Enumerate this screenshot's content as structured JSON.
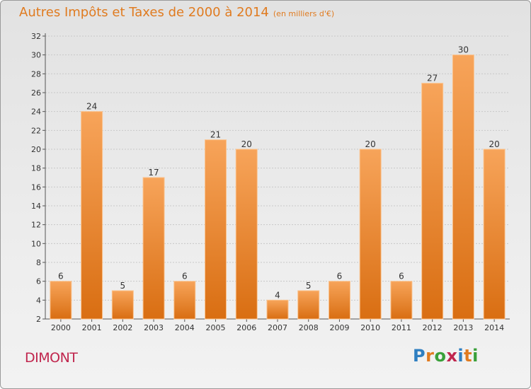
{
  "chart_data": {
    "type": "bar",
    "title": "Autres Impôts et Taxes de 2000 à 2014",
    "subtitle": "(en milliers d'€)",
    "categories": [
      "2000",
      "2001",
      "2002",
      "2003",
      "2004",
      "2005",
      "2006",
      "2007",
      "2008",
      "2009",
      "2010",
      "2011",
      "2012",
      "2013",
      "2014"
    ],
    "values": [
      6,
      24,
      5,
      17,
      6,
      21,
      20,
      4,
      5,
      6,
      20,
      6,
      27,
      30,
      20
    ],
    "ylim": [
      2,
      32
    ],
    "yticks": [
      2,
      4,
      6,
      8,
      10,
      12,
      14,
      16,
      18,
      20,
      22,
      24,
      26,
      28,
      30,
      32
    ],
    "grid": true,
    "bar_color": "#f08a24"
  },
  "location": "DIMONT",
  "logo": {
    "letters": [
      "P",
      "r",
      "o",
      "x",
      "i",
      "t",
      "i"
    ],
    "colors": [
      "#2f7fc1",
      "#e07b20",
      "#3aa03a",
      "#c0254d",
      "#2f7fc1",
      "#e07b20",
      "#3aa03a"
    ]
  }
}
